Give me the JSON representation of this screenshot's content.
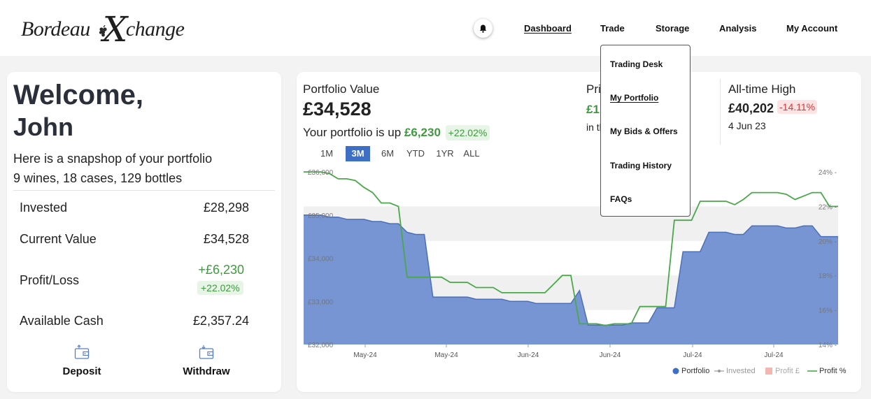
{
  "header": {
    "logo_left": "Bordeau",
    "logo_x": "X",
    "logo_right": "change",
    "notification_icon": "bell-icon",
    "nav": [
      "Dashboard",
      "Trade",
      "Storage",
      "Analysis",
      "My Account"
    ],
    "active_nav": "Dashboard"
  },
  "trade_menu": {
    "items": [
      "Trading Desk",
      "My Portfolio",
      "My Bids & Offers",
      "Trading History",
      "FAQs"
    ],
    "active": "My Portfolio"
  },
  "summary": {
    "welcome": "Welcome,",
    "name": "John",
    "snapshot": "Here is a snapshop of your portfolio",
    "counts": "9 wines, 18 cases, 129 bottles",
    "rows": [
      {
        "label": "Invested",
        "value": "£28,298"
      },
      {
        "label": "Current Value",
        "value": "£34,528"
      },
      {
        "label": "Profit/Loss",
        "value": "+£6,230",
        "badge": "+22.02%"
      },
      {
        "label": "Available Cash",
        "value": "£2,357.24"
      }
    ],
    "actions": [
      {
        "label": "Deposit",
        "icon": "wallet-icon"
      },
      {
        "label": "Withdraw",
        "icon": "wallet-icon"
      }
    ]
  },
  "portfolio": {
    "label": "Portfolio Value",
    "value": "£34,528",
    "up_text": "Your portfolio is up",
    "up_amount": "£6,230",
    "up_pct": "+22.02%",
    "ranges": [
      "1M",
      "3M",
      "6M",
      "YTD",
      "1YR",
      "ALL"
    ],
    "active_range": "3M",
    "pri_label": "Pri",
    "pri_value": "£1",
    "pri_sub": "in th",
    "ath_label": "All-time High",
    "ath_value": "£40,202",
    "ath_pct": "-14.11%",
    "ath_date": "4 Jun 23"
  },
  "colors": {
    "accent": "#3e6fc5",
    "portfolio_fill": "#6f8fd0",
    "profit_line": "#4aa84a",
    "gain": "#3f9a3f",
    "loss": "#d13b3b"
  },
  "chart_data": {
    "type": "area",
    "x_tick_labels": [
      "May-24",
      "May-24",
      "Jun-24",
      "Jun-24",
      "Jul-24",
      "Jul-24"
    ],
    "y_left_ticks": [
      "£32,000",
      "£33,000",
      "£34,000",
      "£35,000",
      "£36,000"
    ],
    "y_left_range": [
      32000,
      36000
    ],
    "y_right_ticks": [
      "14%",
      "16%",
      "18%",
      "20%",
      "22%",
      "24%"
    ],
    "y_right_range": [
      14,
      24
    ],
    "legend": [
      "Portfolio",
      "Invested",
      "Profit £",
      "Profit %"
    ],
    "legend_position": "bottom-right",
    "series": [
      {
        "name": "Portfolio",
        "values": [
          35000,
          35000,
          35000,
          34950,
          34950,
          34900,
          34900,
          34900,
          34850,
          34850,
          34800,
          34800,
          34600,
          34550,
          34550,
          33100,
          33100,
          33100,
          33100,
          33100,
          33050,
          33050,
          33050,
          33050,
          33000,
          33000,
          33000,
          32950,
          32950,
          32950,
          32950,
          32950,
          33250,
          32450,
          32450,
          32450,
          32450,
          32450,
          32500,
          32500,
          32500,
          32850,
          32850,
          32850,
          34150,
          34150,
          34150,
          34600,
          34600,
          34600,
          34550,
          34550,
          34750,
          34750,
          34750,
          34750,
          34700,
          34700,
          34750,
          34750,
          34500,
          34500,
          34500
        ]
      },
      {
        "name": "Profit %",
        "values": [
          24,
          24,
          24,
          23.9,
          23.6,
          23.6,
          23.5,
          23.1,
          22.8,
          22.2,
          22.2,
          22.0,
          17.9,
          17.9,
          17.9,
          17.9,
          17.9,
          17.6,
          17.6,
          17.6,
          17.3,
          17.3,
          17.3,
          17.0,
          17.0,
          17.0,
          17.0,
          17.0,
          17.0,
          17.5,
          18.0,
          18.0,
          15.2,
          15.2,
          15.2,
          15.1,
          15.2,
          15.2,
          15.2,
          16.2,
          16.2,
          16.2,
          16.2,
          21.2,
          21.2,
          21.2,
          22.3,
          22.3,
          22.3,
          22.3,
          22.1,
          22.4,
          22.8,
          22.8,
          22.8,
          22.8,
          22.7,
          22.4,
          22.6,
          22.8,
          22.8,
          22.0,
          22.0
        ]
      }
    ]
  }
}
